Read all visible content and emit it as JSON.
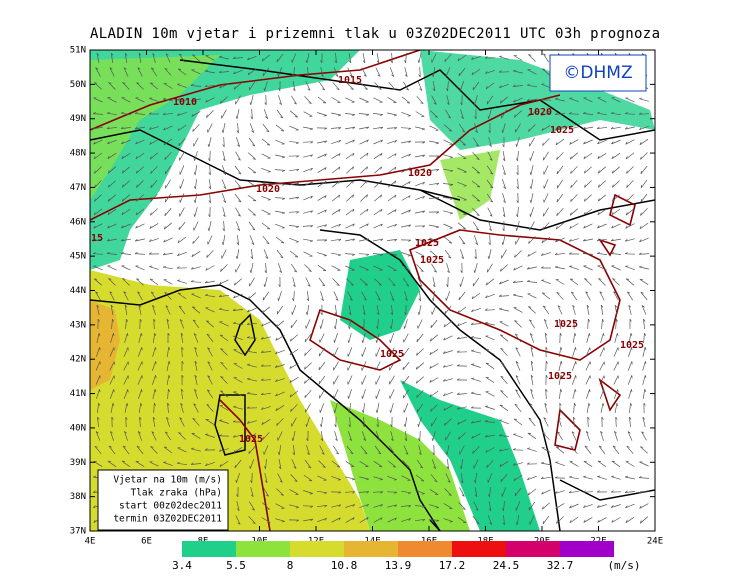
{
  "map": {
    "title": "ALADIN 10m vjetar i prizemni tlak u 03Z02DEC2011 UTC 03h prognoza",
    "logo": "©DHMZ",
    "lat_labels": [
      "51N",
      "50N",
      "49N",
      "48N",
      "47N",
      "46N",
      "45N",
      "44N",
      "43N",
      "42N",
      "41N",
      "40N",
      "39N",
      "38N",
      "37N"
    ],
    "lon_labels": [
      "4E",
      "6E",
      "8E",
      "10E",
      "12E",
      "14E",
      "16E",
      "18E",
      "20E",
      "22E",
      "24E"
    ],
    "isobar_labels": [
      "1015",
      "1010",
      "1020",
      "1025",
      "1020",
      "1020",
      "15",
      "1025",
      "1025",
      "1025",
      "1025",
      "1025",
      "1025",
      "1025"
    ],
    "info_box": [
      "Vjetar na 10m (m/s)",
      "Tlak zraka (hPa)",
      "start 00z02dec2011",
      "termin 03Z02DEC2011"
    ]
  },
  "colorbar": {
    "levels": [
      3.4,
      5.5,
      8,
      10.8,
      13.9,
      17.2,
      24.5,
      32.7
    ],
    "colors": [
      "#20cf8a",
      "#8ee23e",
      "#d6dc2e",
      "#e6b632",
      "#f08a30",
      "#ee1010",
      "#d4006c",
      "#a000c8"
    ],
    "unit": "(m/s)"
  }
}
